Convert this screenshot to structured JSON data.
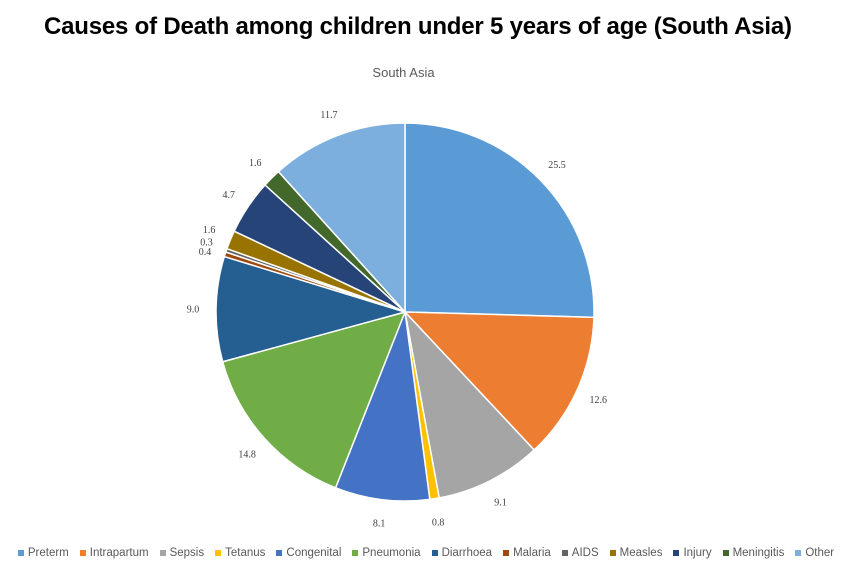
{
  "page_title": "Causes of Death among children under 5 years of age (South Asia)",
  "chart_data": {
    "type": "pie",
    "title": "South Asia",
    "start_angle": "12 o'clock",
    "direction": "clockwise",
    "legend_position": "bottom",
    "categories": [
      "Preterm",
      "Intrapartum",
      "Sepsis",
      "Tetanus",
      "Congenital",
      "Pneumonia",
      "Diarrhoea",
      "Malaria",
      "AIDS",
      "Measles",
      "Injury",
      "Meningitis",
      "Other"
    ],
    "values": [
      25.5,
      12.6,
      9.1,
      0.8,
      8.1,
      14.8,
      9.0,
      0.4,
      0.3,
      1.6,
      4.7,
      1.6,
      11.7
    ],
    "data_labels": [
      "25.5",
      "12.6",
      "9.1",
      "0.8",
      "8.1",
      "14.8",
      "9.0",
      "0.4",
      "0.3",
      "1.6",
      "4.7",
      "1.6",
      "11.7"
    ],
    "colors": [
      "#5B9BD5",
      "#ED7D31",
      "#A5A5A5",
      "#FFC000",
      "#4472C4",
      "#70AD47",
      "#255E91",
      "#9E480E",
      "#636363",
      "#997300",
      "#264478",
      "#43682B",
      "#7CAFDD"
    ]
  }
}
